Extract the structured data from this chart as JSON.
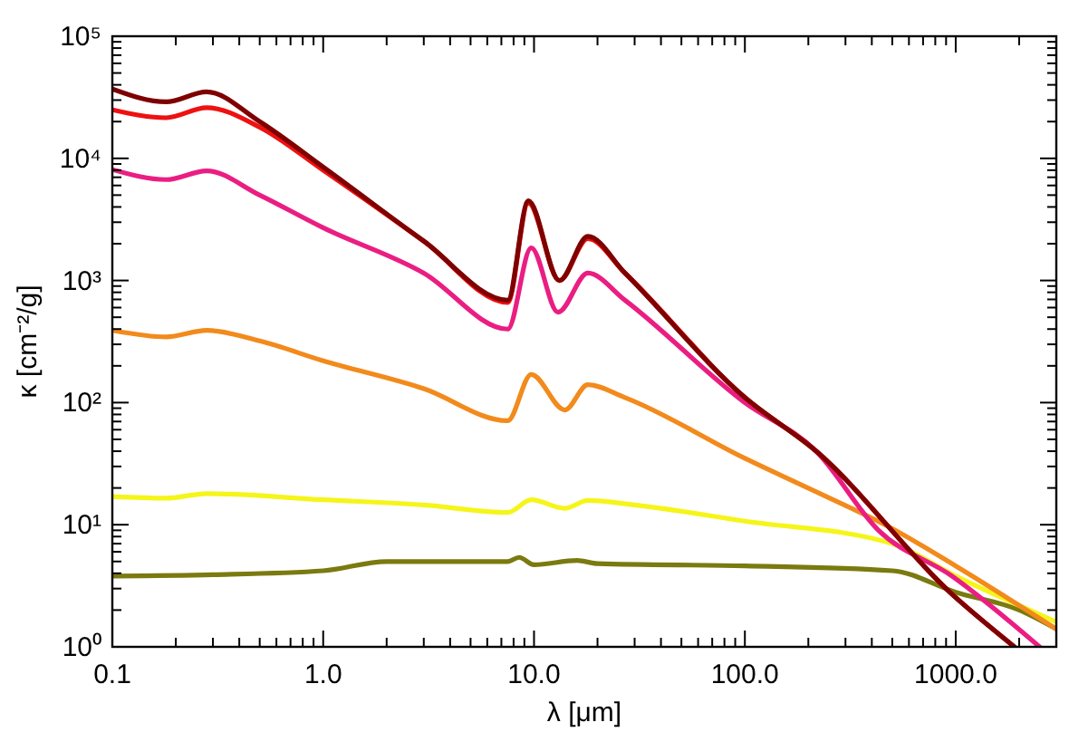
{
  "chart_data": {
    "type": "line",
    "xlabel": "λ [μm]",
    "ylabel": "κ [cm⁻²/g]",
    "log": "xy",
    "xlim": [
      0.1,
      3000
    ],
    "ylim": [
      1,
      100000
    ],
    "grid": false,
    "line_style": "solid",
    "marker": "none",
    "xticks": [
      {
        "value": 0.1,
        "label": "0.1"
      },
      {
        "value": 0.2,
        "label": null
      },
      {
        "value": 0.3,
        "label": null
      },
      {
        "value": 0.4,
        "label": null
      },
      {
        "value": 0.5,
        "label": null
      },
      {
        "value": 0.6,
        "label": null
      },
      {
        "value": 0.7,
        "label": null
      },
      {
        "value": 0.8,
        "label": null
      },
      {
        "value": 0.9,
        "label": null
      },
      {
        "value": 1,
        "label": "1.0"
      },
      {
        "value": 2,
        "label": null
      },
      {
        "value": 3,
        "label": null
      },
      {
        "value": 4,
        "label": null
      },
      {
        "value": 5,
        "label": null
      },
      {
        "value": 6,
        "label": null
      },
      {
        "value": 7,
        "label": null
      },
      {
        "value": 8,
        "label": null
      },
      {
        "value": 9,
        "label": null
      },
      {
        "value": 10,
        "label": "10.0"
      },
      {
        "value": 20,
        "label": null
      },
      {
        "value": 30,
        "label": null
      },
      {
        "value": 40,
        "label": null
      },
      {
        "value": 50,
        "label": null
      },
      {
        "value": 60,
        "label": null
      },
      {
        "value": 70,
        "label": null
      },
      {
        "value": 80,
        "label": null
      },
      {
        "value": 90,
        "label": null
      },
      {
        "value": 100,
        "label": "100.0"
      },
      {
        "value": 200,
        "label": null
      },
      {
        "value": 300,
        "label": null
      },
      {
        "value": 400,
        "label": null
      },
      {
        "value": 500,
        "label": null
      },
      {
        "value": 600,
        "label": null
      },
      {
        "value": 700,
        "label": null
      },
      {
        "value": 800,
        "label": null
      },
      {
        "value": 900,
        "label": null
      },
      {
        "value": 1000,
        "label": "1000.0"
      },
      {
        "value": 2000,
        "label": null
      },
      {
        "value": 3000,
        "label": null
      }
    ],
    "yticks": [
      {
        "value": 1,
        "label": "10⁰"
      },
      {
        "value": 2,
        "label": null
      },
      {
        "value": 3,
        "label": null
      },
      {
        "value": 4,
        "label": null
      },
      {
        "value": 5,
        "label": null
      },
      {
        "value": 6,
        "label": null
      },
      {
        "value": 7,
        "label": null
      },
      {
        "value": 8,
        "label": null
      },
      {
        "value": 9,
        "label": null
      },
      {
        "value": 10,
        "label": "10¹"
      },
      {
        "value": 20,
        "label": null
      },
      {
        "value": 30,
        "label": null
      },
      {
        "value": 40,
        "label": null
      },
      {
        "value": 50,
        "label": null
      },
      {
        "value": 60,
        "label": null
      },
      {
        "value": 70,
        "label": null
      },
      {
        "value": 80,
        "label": null
      },
      {
        "value": 90,
        "label": null
      },
      {
        "value": 100,
        "label": "10²"
      },
      {
        "value": 200,
        "label": null
      },
      {
        "value": 300,
        "label": null
      },
      {
        "value": 400,
        "label": null
      },
      {
        "value": 500,
        "label": null
      },
      {
        "value": 600,
        "label": null
      },
      {
        "value": 700,
        "label": null
      },
      {
        "value": 800,
        "label": null
      },
      {
        "value": 900,
        "label": null
      },
      {
        "value": 1000,
        "label": "10³"
      },
      {
        "value": 2000,
        "label": null
      },
      {
        "value": 3000,
        "label": null
      },
      {
        "value": 4000,
        "label": null
      },
      {
        "value": 5000,
        "label": null
      },
      {
        "value": 6000,
        "label": null
      },
      {
        "value": 7000,
        "label": null
      },
      {
        "value": 8000,
        "label": null
      },
      {
        "value": 9000,
        "label": null
      },
      {
        "value": 10000,
        "label": "10⁴"
      },
      {
        "value": 20000,
        "label": null
      },
      {
        "value": 30000,
        "label": null
      },
      {
        "value": 40000,
        "label": null
      },
      {
        "value": 50000,
        "label": null
      },
      {
        "value": 60000,
        "label": null
      },
      {
        "value": 70000,
        "label": null
      },
      {
        "value": 80000,
        "label": null
      },
      {
        "value": 90000,
        "label": null
      },
      {
        "value": 100000,
        "label": "10⁵"
      }
    ],
    "series": [
      {
        "color": "#7a7a10",
        "x": [
          0.1,
          0.3,
          1,
          2,
          7.5,
          8.5,
          10,
          16,
          20,
          100,
          500,
          1000,
          2000,
          3000
        ],
        "values": [
          3.8,
          3.9,
          4.2,
          5,
          5,
          5.4,
          4.7,
          5.1,
          4.8,
          4.6,
          4.2,
          2.8,
          2,
          1.4
        ]
      },
      {
        "color": "#f5f51a",
        "x": [
          0.1,
          0.18,
          0.28,
          1,
          3,
          7.5,
          9.7,
          14,
          18,
          30,
          100,
          500,
          1000,
          3000
        ],
        "values": [
          17,
          16.5,
          18,
          16,
          14.5,
          12.6,
          16,
          13.6,
          15.8,
          14.5,
          10.7,
          7,
          3.8,
          1.6
        ]
      },
      {
        "color": "#f28a1c",
        "x": [
          0.1,
          0.18,
          0.28,
          0.5,
          1,
          3,
          7.5,
          9.7,
          14,
          18,
          27,
          100,
          218,
          500,
          1000,
          3000
        ],
        "values": [
          390,
          345,
          390,
          320,
          220,
          130,
          71,
          170,
          87,
          140,
          110,
          35,
          18.6,
          9.3,
          4.6,
          1.4
        ]
      },
      {
        "color": "#ea1e82",
        "x": [
          0.1,
          0.18,
          0.28,
          0.5,
          1,
          3,
          7.5,
          9.7,
          13,
          18,
          27,
          100,
          218,
          430,
          960,
          2500
        ],
        "values": [
          8100,
          6700,
          7900,
          5000,
          2700,
          1150,
          400,
          1850,
          550,
          1150,
          690,
          100,
          40,
          9,
          3.8,
          1
        ]
      },
      {
        "color": "#ee1111",
        "x": [
          0.1,
          0.18,
          0.28,
          0.5,
          1,
          3,
          7.5,
          9.4,
          13.2,
          18,
          27,
          100,
          218,
          960,
          1900
        ],
        "values": [
          25000,
          21500,
          26000,
          18000,
          8000,
          2100,
          660,
          4300,
          1000,
          2200,
          1150,
          110,
          40,
          2.7,
          1
        ]
      },
      {
        "color": "#7f0000",
        "x": [
          0.1,
          0.18,
          0.28,
          0.5,
          1,
          3,
          7.5,
          9.4,
          13.2,
          18,
          27,
          100,
          218,
          960,
          1900
        ],
        "values": [
          37000,
          29000,
          35000,
          20000,
          8500,
          2100,
          690,
          4500,
          1000,
          2300,
          1150,
          110,
          40,
          2.7,
          1
        ]
      }
    ]
  }
}
